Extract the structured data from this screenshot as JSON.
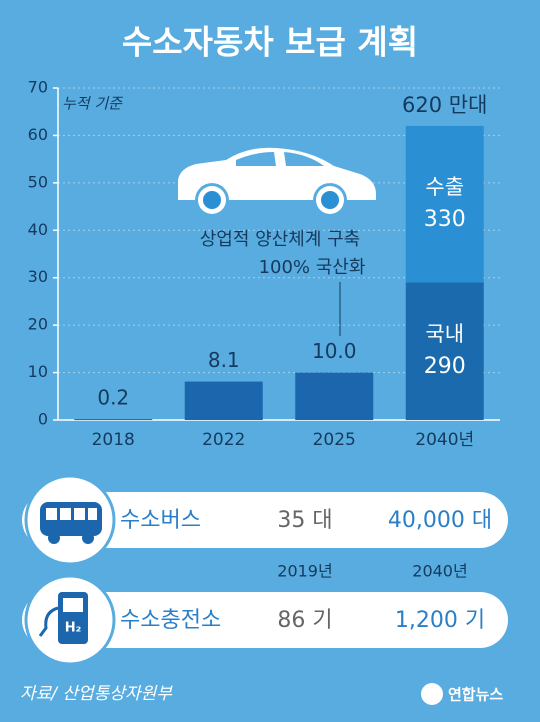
{
  "chart_data": {
    "type": "bar",
    "title": "수소자동차   보급 계획",
    "note": "누적 기준",
    "categories": [
      "2018",
      "2022",
      "2025",
      "2040년"
    ],
    "ylim": [
      0,
      70
    ],
    "yticks": [
      0,
      10,
      20,
      30,
      40,
      50,
      60,
      70
    ],
    "y2lim": [
      0,
      700
    ],
    "grid": true,
    "series": [
      {
        "color": "#1b66ad",
        "values": [
          0.2,
          8.1,
          10.0,
          null
        ],
        "value_labels": [
          "0.2",
          "8.1",
          "10.0",
          null
        ]
      },
      {
        "name": "국내",
        "color": "#1c6aae",
        "axis": "y2",
        "values": [
          null,
          null,
          null,
          290
        ]
      },
      {
        "name": "수출",
        "color": "#2b8fd3",
        "axis": "y2",
        "values": [
          null,
          null,
          null,
          330
        ]
      }
    ],
    "total": {
      "value": 620,
      "label": "620 만대"
    },
    "annotations": [
      "상업적 양산체계 구축",
      "100% 국산화"
    ]
  },
  "table": {
    "columns": [
      "2019년",
      "2040년"
    ],
    "rows": [
      [
        "수소버스",
        "35 대",
        "40,000 대"
      ],
      [
        "수소충전소",
        "86 기",
        "1,200 기"
      ]
    ]
  },
  "source": "자료/ 산업통상자원부",
  "logo": "연합뉴스"
}
